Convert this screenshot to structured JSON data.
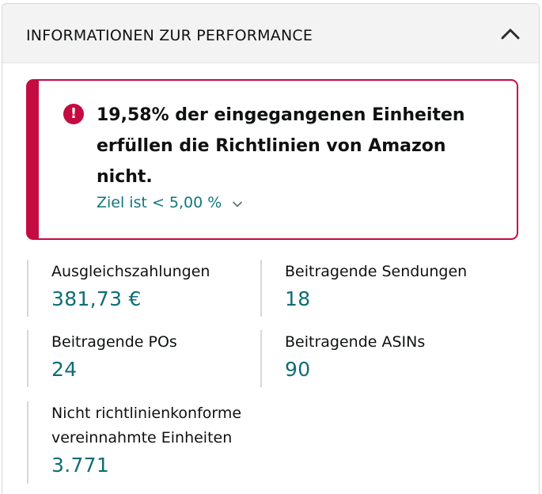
{
  "header": {
    "title": "INFORMATIONEN ZUR PERFORMANCE",
    "collapse_icon": "chevron-up-icon"
  },
  "alert": {
    "icon": "exclamation-circle-icon",
    "message": "19,58% der eingegangenen Einheiten erfüllen die Richtlinien von Amazon nicht.",
    "target": "Ziel ist < 5,00 %",
    "target_icon": "chevron-down-icon",
    "color": "#c40c41"
  },
  "metrics": [
    {
      "label": "Ausgleichszahlungen",
      "value": "381,73 €"
    },
    {
      "label": "Beitragende Sendungen",
      "value": "18"
    },
    {
      "label": "Beitragende POs",
      "value": "24"
    },
    {
      "label": "Beitragende ASINs",
      "value": "90"
    },
    {
      "label": "Nicht richtlinienkonforme vereinnahmte Einheiten",
      "value": "3.771"
    }
  ],
  "colors": {
    "value_teal": "#0f6d75",
    "link_teal": "#12767f",
    "divider": "#d5d9d9"
  }
}
